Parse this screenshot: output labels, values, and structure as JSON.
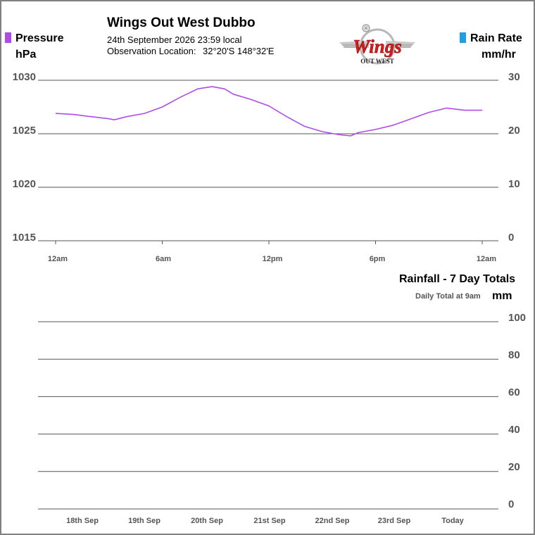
{
  "header": {
    "title": "Wings Out West Dubbo",
    "date_line": "24th September 2026  23:59 local",
    "location_label": "Observation Location:",
    "location_value": "32°20'S 148°32'E"
  },
  "logo": {
    "wordmark": "Wings",
    "tagline": "OUT WEST"
  },
  "colors": {
    "pressure": "#b04ce6",
    "rain_rate": "#1ea0e6",
    "grid": "#555555",
    "tick_text": "#555555"
  },
  "legend": {
    "pressure": {
      "label": "Pressure",
      "unit": "hPa"
    },
    "rain_rate": {
      "label": "Rain Rate",
      "unit": "mm/hr"
    }
  },
  "rainfall_panel": {
    "title": "Rainfall - 7 Day Totals",
    "note": "Daily Total at 9am",
    "unit": "mm"
  },
  "chart_data": [
    {
      "type": "line",
      "title": "",
      "x_ticks": [
        "12am",
        "6am",
        "12pm",
        "6pm",
        "12am"
      ],
      "y_left": {
        "label": "Pressure",
        "unit": "hPa",
        "ticks": [
          1030,
          1025,
          1020,
          1015
        ],
        "ylim": [
          1015,
          1030
        ]
      },
      "y_right": {
        "label": "Rain Rate",
        "unit": "mm/hr",
        "ticks": [
          30,
          20,
          10,
          0
        ],
        "ylim": [
          0,
          30
        ]
      },
      "grid": true,
      "series": [
        {
          "name": "Pressure",
          "axis": "left",
          "x_hours": [
            0,
            1,
            2,
            3,
            3.3,
            4,
            5,
            6,
            7,
            8,
            8.8,
            9.5,
            10,
            11,
            12,
            13,
            14,
            15,
            16,
            16.6,
            17,
            18,
            19,
            20,
            21,
            22,
            23,
            24
          ],
          "values": [
            1026.9,
            1026.8,
            1026.6,
            1026.4,
            1026.3,
            1026.6,
            1026.9,
            1027.5,
            1028.4,
            1029.2,
            1029.4,
            1029.2,
            1028.7,
            1028.2,
            1027.6,
            1026.6,
            1025.7,
            1025.2,
            1024.9,
            1024.8,
            1025.1,
            1025.4,
            1025.8,
            1026.4,
            1027.0,
            1027.4,
            1027.2,
            1027.2
          ]
        },
        {
          "name": "Rain Rate",
          "axis": "right",
          "x_hours": [],
          "values": []
        }
      ]
    },
    {
      "type": "bar",
      "title": "Rainfall - 7 Day Totals",
      "categories": [
        "18th Sep",
        "19th Sep",
        "20th Sep",
        "21st Sep",
        "22nd Sep",
        "23rd Sep",
        "Today"
      ],
      "values": [
        0,
        0,
        0,
        0,
        0,
        0,
        0
      ],
      "ylabel": "mm",
      "y_ticks": [
        100,
        80,
        60,
        40,
        20,
        0
      ],
      "ylim": [
        0,
        100
      ],
      "grid": true
    }
  ]
}
